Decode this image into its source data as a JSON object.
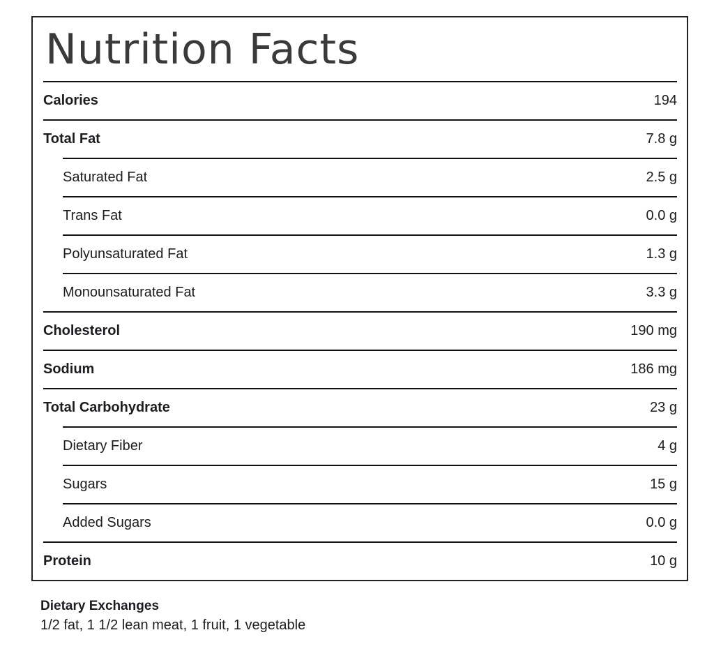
{
  "nutrition_label": {
    "title": "Nutrition Facts",
    "rows": [
      {
        "label": "Calories",
        "value": "194",
        "style": "main",
        "bold": true
      },
      {
        "label": "Total Fat",
        "value": "7.8 g",
        "style": "main",
        "bold": true
      },
      {
        "label": "Saturated Fat",
        "value": "2.5 g",
        "style": "sub",
        "bold": false
      },
      {
        "label": "Trans Fat",
        "value": "0.0 g",
        "style": "sub",
        "bold": false
      },
      {
        "label": "Polyunsaturated Fat",
        "value": "1.3 g",
        "style": "sub",
        "bold": false
      },
      {
        "label": "Monounsaturated Fat",
        "value": "3.3 g",
        "style": "sub",
        "bold": false
      },
      {
        "label": "Cholesterol",
        "value": "190 mg",
        "style": "main",
        "bold": true
      },
      {
        "label": "Sodium",
        "value": "186 mg",
        "style": "main",
        "bold": true
      },
      {
        "label": "Total Carbohydrate",
        "value": "23 g",
        "style": "main",
        "bold": true
      },
      {
        "label": "Dietary Fiber",
        "value": "4 g",
        "style": "sub",
        "bold": false
      },
      {
        "label": "Sugars",
        "value": "15 g",
        "style": "sub",
        "bold": false
      },
      {
        "label": "Added Sugars",
        "value": "0.0 g",
        "style": "sub",
        "bold": false
      },
      {
        "label": "Protein",
        "value": "10 g",
        "style": "main",
        "bold": true
      }
    ]
  },
  "footer": {
    "heading": "Dietary Exchanges",
    "text": "1/2 fat, 1 1/2 lean meat, 1 fruit, 1 vegetable"
  },
  "colors": {
    "border": "#222222",
    "divider": "#111111",
    "title_text": "#3a3a3a",
    "body_text": "#1d1d1f",
    "background": "#ffffff"
  }
}
